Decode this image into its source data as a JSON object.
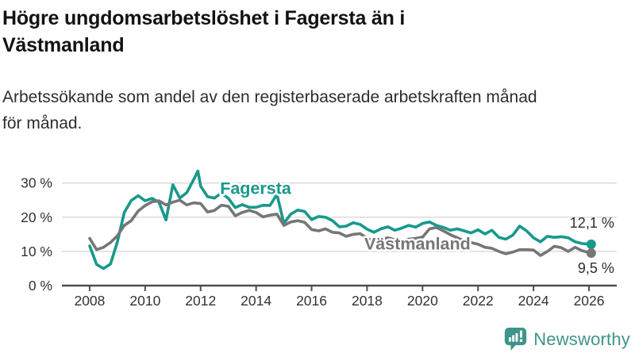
{
  "header": {
    "title_lines": [
      "Högre ungdomsarbetslöshet i Fagersta än i",
      "Västmanland"
    ],
    "subtitle_lines": [
      "Arbetssökande som andel av den registerbaserade arbetskraften månad",
      "för månad."
    ]
  },
  "branding": {
    "wordmark": "Newsworthy",
    "icon": "bar-chart-speech-bubble-icon",
    "brand_color": "#3E948A"
  },
  "chart_data": {
    "type": "line",
    "title": "Högre ungdomsarbetslöshet i Fagersta än i Västmanland",
    "subtitle": "Arbetssökande som andel av den registerbaserade arbetskraften månad för månad.",
    "unit": "%",
    "grid": "horizontal-light",
    "legend_position": "inline-labels",
    "x_axis": {
      "ticks": [
        2008,
        2010,
        2012,
        2014,
        2016,
        2018,
        2020,
        2022,
        2024,
        2026
      ],
      "range": [
        2007,
        2027
      ]
    },
    "y_axis": {
      "ticks": [
        0,
        10,
        20,
        30
      ],
      "suffix": " %",
      "range": [
        0,
        35.5
      ]
    },
    "colors": {
      "fagersta": "#18998B",
      "vastmanland": "#767676",
      "gridline": "#DBDBDB",
      "axis": "#4D4D4D",
      "tick_text": "#333333",
      "annotation_text": "#2E2E2E"
    },
    "series": [
      {
        "name": "Fagersta",
        "color": "#18998B",
        "end_label": "12,1 %",
        "end_value": 12.1,
        "end_label_side": "above",
        "label_anchor": {
          "x": 2012.7,
          "y": 26.8
        },
        "points": [
          [
            2008.0,
            11.6
          ],
          [
            2008.25,
            6.2
          ],
          [
            2008.5,
            5.0
          ],
          [
            2008.75,
            6.3
          ],
          [
            2009.0,
            12.8
          ],
          [
            2009.25,
            21.4
          ],
          [
            2009.5,
            24.9
          ],
          [
            2009.75,
            26.3
          ],
          [
            2010.0,
            24.8
          ],
          [
            2010.25,
            25.5
          ],
          [
            2010.5,
            24.4
          ],
          [
            2010.75,
            19.2
          ],
          [
            2011.0,
            29.5
          ],
          [
            2011.25,
            25.6
          ],
          [
            2011.5,
            27.2
          ],
          [
            2011.75,
            31.0
          ],
          [
            2011.9,
            33.5
          ],
          [
            2012.0,
            29.1
          ],
          [
            2012.25,
            26.0
          ],
          [
            2012.5,
            25.6
          ],
          [
            2012.75,
            27.1
          ],
          [
            2013.0,
            25.5
          ],
          [
            2013.25,
            22.8
          ],
          [
            2013.5,
            23.7
          ],
          [
            2013.75,
            22.9
          ],
          [
            2014.0,
            22.9
          ],
          [
            2014.25,
            23.5
          ],
          [
            2014.5,
            23.4
          ],
          [
            2014.75,
            26.7
          ],
          [
            2015.0,
            18.2
          ],
          [
            2015.25,
            20.9
          ],
          [
            2015.5,
            22.1
          ],
          [
            2015.75,
            21.7
          ],
          [
            2016.0,
            19.3
          ],
          [
            2016.25,
            20.2
          ],
          [
            2016.5,
            20.0
          ],
          [
            2016.75,
            19.0
          ],
          [
            2017.0,
            17.2
          ],
          [
            2017.25,
            17.4
          ],
          [
            2017.5,
            18.4
          ],
          [
            2017.75,
            17.9
          ],
          [
            2018.0,
            16.5
          ],
          [
            2018.25,
            15.6
          ],
          [
            2018.5,
            16.6
          ],
          [
            2018.75,
            17.2
          ],
          [
            2019.0,
            16.2
          ],
          [
            2019.25,
            16.8
          ],
          [
            2019.5,
            17.6
          ],
          [
            2019.75,
            17.1
          ],
          [
            2020.0,
            18.2
          ],
          [
            2020.25,
            18.6
          ],
          [
            2020.5,
            17.6
          ],
          [
            2020.75,
            17.0
          ],
          [
            2021.0,
            16.2
          ],
          [
            2021.25,
            16.6
          ],
          [
            2021.5,
            16.0
          ],
          [
            2021.75,
            15.4
          ],
          [
            2022.0,
            16.3
          ],
          [
            2022.25,
            15.1
          ],
          [
            2022.5,
            16.2
          ],
          [
            2022.75,
            14.1
          ],
          [
            2023.0,
            13.6
          ],
          [
            2023.25,
            14.7
          ],
          [
            2023.5,
            17.4
          ],
          [
            2023.75,
            16.0
          ],
          [
            2024.0,
            14.0
          ],
          [
            2024.25,
            12.8
          ],
          [
            2024.5,
            14.4
          ],
          [
            2024.75,
            14.1
          ],
          [
            2025.0,
            14.3
          ],
          [
            2025.25,
            14.0
          ],
          [
            2025.5,
            12.8
          ],
          [
            2025.75,
            12.3
          ],
          [
            2026.08,
            12.1
          ]
        ]
      },
      {
        "name": "Västmanland",
        "color": "#767676",
        "end_label": "9,5 %",
        "end_value": 9.5,
        "end_label_side": "below",
        "label_anchor": {
          "x": 2017.9,
          "y": 10.5
        },
        "points": [
          [
            2008.0,
            13.8
          ],
          [
            2008.25,
            10.5
          ],
          [
            2008.5,
            11.2
          ],
          [
            2008.75,
            12.6
          ],
          [
            2009.0,
            14.6
          ],
          [
            2009.25,
            17.6
          ],
          [
            2009.5,
            19.0
          ],
          [
            2009.75,
            21.8
          ],
          [
            2010.0,
            23.4
          ],
          [
            2010.25,
            24.5
          ],
          [
            2010.5,
            24.8
          ],
          [
            2010.75,
            23.6
          ],
          [
            2011.0,
            24.4
          ],
          [
            2011.25,
            25.0
          ],
          [
            2011.5,
            23.6
          ],
          [
            2011.75,
            24.2
          ],
          [
            2012.0,
            24.0
          ],
          [
            2012.25,
            21.5
          ],
          [
            2012.5,
            22.0
          ],
          [
            2012.75,
            23.5
          ],
          [
            2013.0,
            23.2
          ],
          [
            2013.25,
            20.4
          ],
          [
            2013.5,
            21.4
          ],
          [
            2013.75,
            22.0
          ],
          [
            2014.0,
            21.4
          ],
          [
            2014.25,
            20.1
          ],
          [
            2014.5,
            20.6
          ],
          [
            2014.75,
            20.9
          ],
          [
            2015.0,
            17.6
          ],
          [
            2015.25,
            18.6
          ],
          [
            2015.5,
            19.0
          ],
          [
            2015.75,
            18.5
          ],
          [
            2016.0,
            16.4
          ],
          [
            2016.25,
            16.0
          ],
          [
            2016.5,
            16.6
          ],
          [
            2016.75,
            15.6
          ],
          [
            2017.0,
            15.4
          ],
          [
            2017.25,
            14.4
          ],
          [
            2017.5,
            15.0
          ],
          [
            2017.75,
            15.2
          ],
          [
            2018.0,
            13.9
          ],
          [
            2018.25,
            12.8
          ],
          [
            2018.5,
            13.5
          ],
          [
            2018.75,
            14.0
          ],
          [
            2019.0,
            13.4
          ],
          [
            2019.25,
            13.0
          ],
          [
            2019.5,
            13.6
          ],
          [
            2019.75,
            13.8
          ],
          [
            2020.0,
            14.2
          ],
          [
            2020.25,
            16.6
          ],
          [
            2020.5,
            17.0
          ],
          [
            2020.75,
            16.0
          ],
          [
            2021.0,
            14.9
          ],
          [
            2021.25,
            14.0
          ],
          [
            2021.5,
            13.1
          ],
          [
            2021.75,
            12.6
          ],
          [
            2022.0,
            12.1
          ],
          [
            2022.25,
            11.2
          ],
          [
            2022.5,
            10.9
          ],
          [
            2022.75,
            10.0
          ],
          [
            2023.0,
            9.3
          ],
          [
            2023.25,
            9.8
          ],
          [
            2023.5,
            10.5
          ],
          [
            2023.75,
            10.5
          ],
          [
            2024.0,
            10.4
          ],
          [
            2024.25,
            8.8
          ],
          [
            2024.5,
            10.0
          ],
          [
            2024.75,
            11.5
          ],
          [
            2025.0,
            11.1
          ],
          [
            2025.25,
            10.0
          ],
          [
            2025.5,
            11.2
          ],
          [
            2025.75,
            10.2
          ],
          [
            2026.08,
            9.5
          ]
        ]
      }
    ]
  }
}
